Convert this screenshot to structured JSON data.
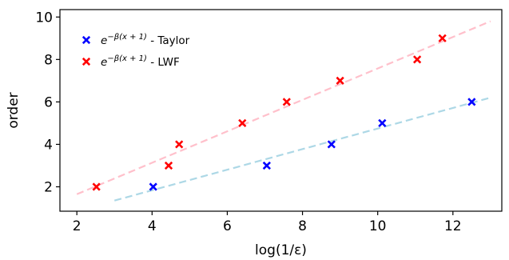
{
  "chart_data": {
    "type": "scatter",
    "title": "",
    "xlabel": "log(1/ε)",
    "ylabel": "order",
    "xlim": [
      1.55,
      13.3
    ],
    "ylim": [
      0.85,
      10.35
    ],
    "xticks": [
      2,
      4,
      6,
      8,
      10,
      12
    ],
    "yticks": [
      2,
      4,
      6,
      8,
      10
    ],
    "grid": false,
    "legend_position": "top-left",
    "series": [
      {
        "name": "e^{-β(x+1)} - Taylor",
        "legend_math": "e",
        "legend_exp": "−β(x + 1)",
        "legend_suffix": " - Taylor",
        "marker": "x",
        "color": "#0000ff",
        "x": [
          4.03,
          7.05,
          8.77,
          10.12,
          12.5
        ],
        "y": [
          2,
          3,
          4,
          5,
          6
        ]
      },
      {
        "name": "e^{-β(x+1)} - LWF",
        "legend_math": "e",
        "legend_exp": "−β(x + 1)",
        "legend_suffix": " - LWF",
        "marker": "x",
        "color": "#ff0000",
        "x": [
          2.52,
          4.44,
          4.72,
          6.4,
          7.58,
          9.0,
          11.05,
          11.72
        ],
        "y": [
          2,
          3,
          4,
          5,
          6,
          7,
          8,
          9
        ]
      }
    ],
    "trend_lines": [
      {
        "color": "#add8e6",
        "dash": "dashed",
        "x": [
          3.0,
          13.0
        ],
        "y": [
          1.35,
          6.2
        ]
      },
      {
        "color": "#ffc0cb",
        "dash": "dashed",
        "x": [
          2.0,
          13.0
        ],
        "y": [
          1.65,
          9.8
        ]
      }
    ]
  }
}
